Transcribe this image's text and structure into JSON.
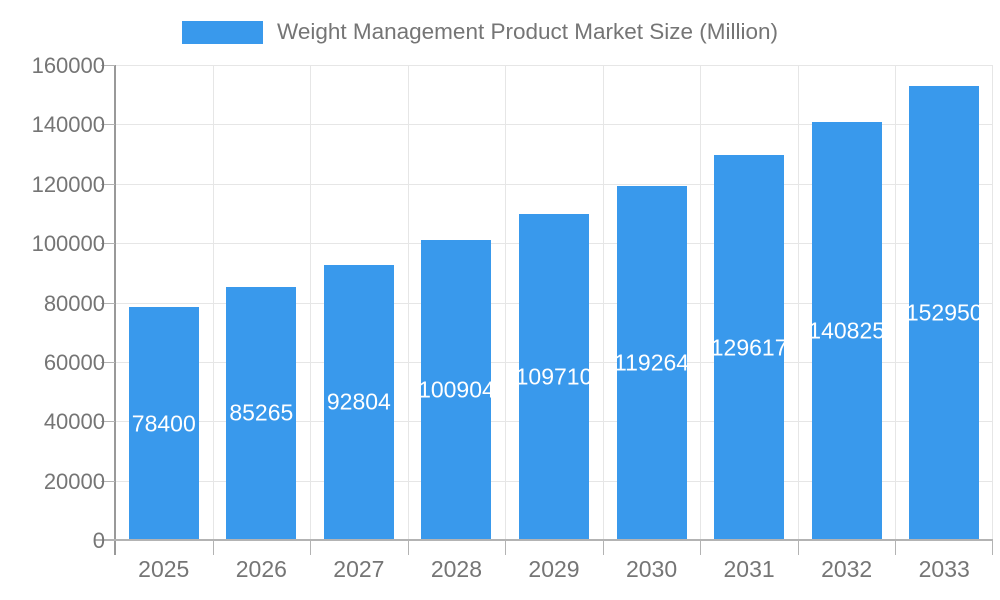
{
  "chart_data": {
    "type": "bar",
    "title": "Weight Management Product Market Size (Million)",
    "legend": {
      "label": "Weight Management Product Market Size (Million)",
      "position": "top"
    },
    "categories": [
      "2025",
      "2026",
      "2027",
      "2028",
      "2029",
      "2030",
      "2031",
      "2032",
      "2033"
    ],
    "values": [
      78400,
      85265,
      92804,
      100904,
      109710,
      119264,
      129617,
      140825,
      152950
    ],
    "xlabel": "",
    "ylabel": "",
    "ylim": [
      0,
      160000
    ],
    "yticks": [
      0,
      20000,
      40000,
      60000,
      80000,
      100000,
      120000,
      140000,
      160000
    ],
    "grid": true,
    "bar_labels_visible": true,
    "colors": {
      "bar": "#3999ec",
      "bar_label_text": "#ffffff",
      "axis_text": "#757575",
      "title_text": "#757575",
      "gridline": "#e6e6e6",
      "axis_line": "#999999",
      "baseline": "#b3b3b3"
    }
  }
}
